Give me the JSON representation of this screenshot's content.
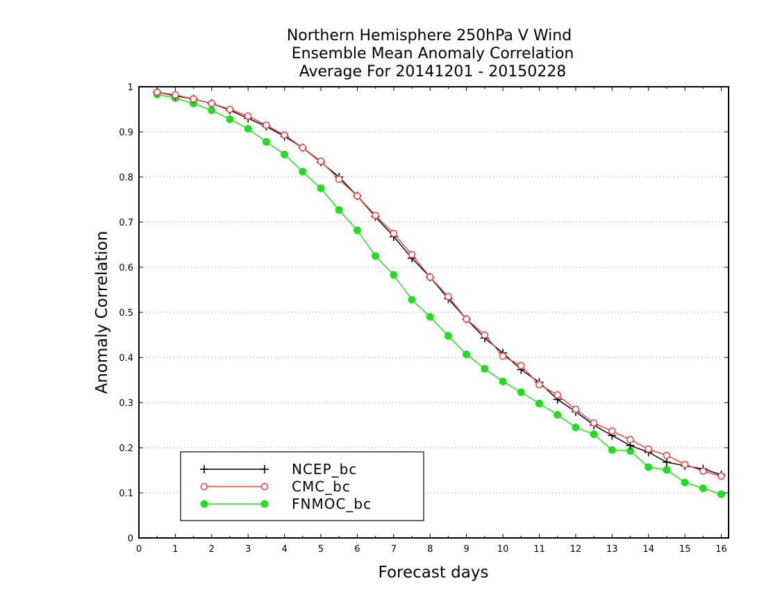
{
  "chart_data": {
    "type": "line",
    "title": [
      "Northern Hemisphere 250hPa V Wind",
      "Ensemble Mean Anomaly Correlation",
      "Average For 20141201 - 20150228"
    ],
    "xlabel": "Forecast days",
    "ylabel": "Anomaly Correlation",
    "xlim": [
      0,
      16.2
    ],
    "ylim": [
      0,
      1
    ],
    "xticks": [
      0,
      1,
      2,
      3,
      4,
      5,
      6,
      7,
      8,
      9,
      10,
      11,
      12,
      13,
      14,
      15,
      16
    ],
    "yticks": [
      0,
      0.1,
      0.2,
      0.3,
      0.4,
      0.5,
      0.6,
      0.7,
      0.8,
      0.9,
      1
    ],
    "ytick_labels": [
      "0",
      "0.1",
      "0.2",
      "0.3",
      "0.4",
      "0.5",
      "0.6",
      "0.7",
      "0.8",
      "0.9",
      "1"
    ],
    "grid": "horizontal-dotted",
    "legend_position": "bottom-left",
    "x": [
      0.5,
      1,
      1.5,
      2,
      2.5,
      3,
      3.5,
      4,
      4.5,
      5,
      5.5,
      6,
      6.5,
      7,
      7.5,
      8,
      8.5,
      9,
      9.5,
      10,
      10.5,
      11,
      11.5,
      12,
      12.5,
      13,
      13.5,
      14,
      14.5,
      15,
      15.5,
      16
    ],
    "series": [
      {
        "name": "NCEP_bc",
        "color": "#000000",
        "marker": "plus",
        "values": [
          0.988,
          0.98,
          0.973,
          0.963,
          0.948,
          0.93,
          0.912,
          0.89,
          0.865,
          0.833,
          0.8,
          0.758,
          0.712,
          0.668,
          0.62,
          0.578,
          0.53,
          0.485,
          0.443,
          0.41,
          0.373,
          0.345,
          0.307,
          0.28,
          0.25,
          0.227,
          0.205,
          0.19,
          0.168,
          0.16,
          0.153,
          0.14
        ]
      },
      {
        "name": "CMC_bc",
        "color": "#ee4444",
        "marker": "open-circle",
        "values": [
          0.988,
          0.982,
          0.973,
          0.963,
          0.95,
          0.935,
          0.915,
          0.893,
          0.865,
          0.835,
          0.795,
          0.758,
          0.715,
          0.675,
          0.628,
          0.578,
          0.535,
          0.485,
          0.45,
          0.403,
          0.382,
          0.34,
          0.317,
          0.285,
          0.255,
          0.237,
          0.218,
          0.197,
          0.183,
          0.163,
          0.148,
          0.137
        ]
      },
      {
        "name": "FNMOC_bc",
        "color": "#22dd22",
        "marker": "filled-circle",
        "values": [
          0.983,
          0.975,
          0.963,
          0.948,
          0.928,
          0.907,
          0.878,
          0.85,
          0.812,
          0.775,
          0.727,
          0.682,
          0.625,
          0.583,
          0.528,
          0.49,
          0.448,
          0.407,
          0.375,
          0.347,
          0.323,
          0.298,
          0.273,
          0.245,
          0.23,
          0.195,
          0.193,
          0.157,
          0.151,
          0.123,
          0.11,
          0.097
        ]
      }
    ]
  }
}
